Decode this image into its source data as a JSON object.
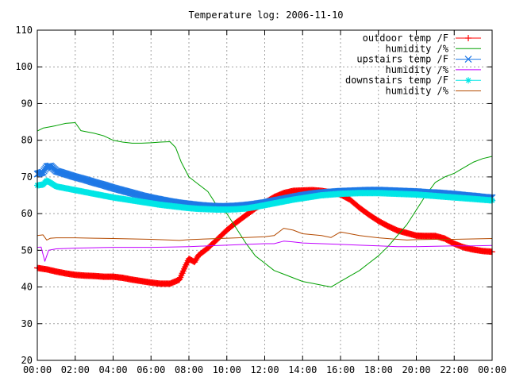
{
  "chart_data": {
    "type": "line",
    "title": "Temperature log: 2006-11-10",
    "xlabel": "",
    "ylabel": "",
    "ylim": [
      20,
      110
    ],
    "xlim": [
      0,
      24
    ],
    "grid": true,
    "legend_position": "top-right",
    "x_ticks": [
      "00:00",
      "02:00",
      "04:00",
      "06:00",
      "08:00",
      "10:00",
      "12:00",
      "14:00",
      "16:00",
      "18:00",
      "20:00",
      "22:00",
      "00:00"
    ],
    "y_ticks": [
      20,
      30,
      40,
      50,
      60,
      70,
      80,
      90,
      100,
      110
    ],
    "series": [
      {
        "name": "outdoor temp /F",
        "color": "#ff0000",
        "marker": "plus",
        "points": [
          [
            0,
            45.2
          ],
          [
            0.5,
            44.8
          ],
          [
            1,
            44.2
          ],
          [
            1.5,
            43.7
          ],
          [
            2,
            43.3
          ],
          [
            2.5,
            43.1
          ],
          [
            3,
            43.0
          ],
          [
            3.5,
            42.8
          ],
          [
            4,
            42.8
          ],
          [
            4.5,
            42.5
          ],
          [
            5,
            42.0
          ],
          [
            5.5,
            41.6
          ],
          [
            6,
            41.2
          ],
          [
            6.5,
            40.9
          ],
          [
            7,
            40.9
          ],
          [
            7.5,
            42.0
          ],
          [
            7.8,
            45.5
          ],
          [
            8,
            47.7
          ],
          [
            8.3,
            46.8
          ],
          [
            8.5,
            48.6
          ],
          [
            9,
            50.6
          ],
          [
            9.5,
            53.0
          ],
          [
            10,
            55.5
          ],
          [
            10.5,
            57.6
          ],
          [
            11,
            59.5
          ],
          [
            11.5,
            61.4
          ],
          [
            12,
            63.0
          ],
          [
            12.5,
            64.5
          ],
          [
            13,
            65.6
          ],
          [
            13.5,
            66.2
          ],
          [
            14,
            66.3
          ],
          [
            14.5,
            66.4
          ],
          [
            15,
            66.2
          ],
          [
            15.5,
            65.8
          ],
          [
            16,
            65.2
          ],
          [
            16.5,
            63.8
          ],
          [
            17,
            61.6
          ],
          [
            17.5,
            59.7
          ],
          [
            18,
            58.0
          ],
          [
            18.5,
            56.6
          ],
          [
            19,
            55.4
          ],
          [
            19.5,
            54.7
          ],
          [
            20,
            54.0
          ],
          [
            20.5,
            53.9
          ],
          [
            21,
            53.9
          ],
          [
            21.5,
            53.2
          ],
          [
            22,
            51.8
          ],
          [
            22.5,
            50.8
          ],
          [
            23,
            50.2
          ],
          [
            23.5,
            49.8
          ],
          [
            24,
            49.6
          ]
        ]
      },
      {
        "name": "humidity /%",
        "color": "#00a000",
        "marker": "none",
        "points": [
          [
            0,
            82.5
          ],
          [
            0.3,
            83.3
          ],
          [
            0.7,
            83.7
          ],
          [
            1,
            84.0
          ],
          [
            1.5,
            84.6
          ],
          [
            2,
            84.8
          ],
          [
            2.3,
            82.6
          ],
          [
            3,
            81.9
          ],
          [
            3.5,
            81.2
          ],
          [
            4,
            80.0
          ],
          [
            4.5,
            79.5
          ],
          [
            5,
            79.2
          ],
          [
            5.5,
            79.2
          ],
          [
            6,
            79.3
          ],
          [
            6.5,
            79.5
          ],
          [
            7,
            79.6
          ],
          [
            7.3,
            78.0
          ],
          [
            7.6,
            74.0
          ],
          [
            8,
            70.0
          ],
          [
            8.5,
            68.0
          ],
          [
            9,
            66.0
          ],
          [
            9.5,
            62.0
          ],
          [
            10,
            60.0
          ],
          [
            10.5,
            56.0
          ],
          [
            11,
            52.0
          ],
          [
            11.5,
            48.5
          ],
          [
            12,
            46.5
          ],
          [
            12.5,
            44.5
          ],
          [
            13,
            43.5
          ],
          [
            13.5,
            42.5
          ],
          [
            14,
            41.5
          ],
          [
            14.5,
            41.0
          ],
          [
            15,
            40.5
          ],
          [
            15.5,
            40.0
          ],
          [
            16,
            41.5
          ],
          [
            16.5,
            43.0
          ],
          [
            17,
            44.5
          ],
          [
            17.5,
            46.5
          ],
          [
            18,
            48.5
          ],
          [
            18.5,
            51.0
          ],
          [
            19,
            54.0
          ],
          [
            19.5,
            57.0
          ],
          [
            20,
            61.0
          ],
          [
            20.5,
            65.0
          ],
          [
            21,
            68.5
          ],
          [
            21.5,
            70.0
          ],
          [
            22,
            71.0
          ],
          [
            22.5,
            72.5
          ],
          [
            23,
            74.0
          ],
          [
            23.5,
            75.0
          ],
          [
            24,
            75.6
          ]
        ]
      },
      {
        "name": "upstairs temp /F",
        "color": "#1e78e6",
        "marker": "x",
        "points": [
          [
            0,
            70.8
          ],
          [
            0.3,
            71.3
          ],
          [
            0.5,
            72.8
          ],
          [
            0.7,
            73.0
          ],
          [
            1,
            71.6
          ],
          [
            1.5,
            70.8
          ],
          [
            2,
            70.0
          ],
          [
            2.5,
            69.3
          ],
          [
            3,
            68.5
          ],
          [
            3.5,
            67.8
          ],
          [
            4,
            67.0
          ],
          [
            4.5,
            66.3
          ],
          [
            5,
            65.6
          ],
          [
            5.5,
            64.9
          ],
          [
            6,
            64.3
          ],
          [
            6.5,
            63.8
          ],
          [
            7,
            63.3
          ],
          [
            7.5,
            62.9
          ],
          [
            8,
            62.6
          ],
          [
            8.5,
            62.3
          ],
          [
            9,
            62.1
          ],
          [
            9.5,
            62.0
          ],
          [
            10,
            62.0
          ],
          [
            10.5,
            62.1
          ],
          [
            11,
            62.3
          ],
          [
            11.5,
            62.6
          ],
          [
            12,
            63.0
          ],
          [
            12.5,
            63.5
          ],
          [
            13,
            64.0
          ],
          [
            13.5,
            64.5
          ],
          [
            14,
            65.0
          ],
          [
            14.5,
            65.4
          ],
          [
            15,
            65.7
          ],
          [
            15.5,
            65.9
          ],
          [
            16,
            66.1
          ],
          [
            16.5,
            66.2
          ],
          [
            17,
            66.3
          ],
          [
            17.5,
            66.4
          ],
          [
            18,
            66.4
          ],
          [
            18.5,
            66.3
          ],
          [
            19,
            66.2
          ],
          [
            19.5,
            66.1
          ],
          [
            20,
            66.0
          ],
          [
            20.5,
            65.8
          ],
          [
            21,
            65.7
          ],
          [
            21.5,
            65.5
          ],
          [
            22,
            65.3
          ],
          [
            22.5,
            65.0
          ],
          [
            23,
            64.8
          ],
          [
            23.5,
            64.5
          ],
          [
            24,
            64.3
          ]
        ]
      },
      {
        "name": "humidity /%",
        "color": "#c000ff",
        "marker": "none",
        "points": [
          [
            0,
            50.8
          ],
          [
            0.2,
            50.9
          ],
          [
            0.4,
            47.0
          ],
          [
            0.6,
            50.0
          ],
          [
            1,
            50.4
          ],
          [
            2,
            50.6
          ],
          [
            3,
            50.7
          ],
          [
            4,
            50.8
          ],
          [
            5,
            50.8
          ],
          [
            6,
            50.8
          ],
          [
            7,
            50.9
          ],
          [
            8,
            51.0
          ],
          [
            9,
            51.2
          ],
          [
            10,
            51.4
          ],
          [
            11,
            51.6
          ],
          [
            12,
            51.8
          ],
          [
            12.5,
            51.8
          ],
          [
            13,
            52.5
          ],
          [
            13.5,
            52.3
          ],
          [
            14,
            52.0
          ],
          [
            15,
            51.8
          ],
          [
            16,
            51.6
          ],
          [
            17,
            51.4
          ],
          [
            18,
            51.2
          ],
          [
            19,
            51.0
          ],
          [
            20,
            51.0
          ],
          [
            21,
            51.1
          ],
          [
            22,
            51.2
          ],
          [
            23,
            51.2
          ],
          [
            24,
            51.3
          ]
        ]
      },
      {
        "name": "downstairs temp /F",
        "color": "#00e6e6",
        "marker": "star",
        "points": [
          [
            0,
            67.7
          ],
          [
            0.3,
            67.9
          ],
          [
            0.5,
            69.0
          ],
          [
            0.7,
            68.4
          ],
          [
            1,
            67.4
          ],
          [
            1.5,
            66.9
          ],
          [
            2,
            66.4
          ],
          [
            2.5,
            65.9
          ],
          [
            3,
            65.4
          ],
          [
            3.5,
            64.9
          ],
          [
            4,
            64.4
          ],
          [
            4.5,
            64.0
          ],
          [
            5,
            63.6
          ],
          [
            5.5,
            63.2
          ],
          [
            6,
            62.8
          ],
          [
            6.5,
            62.4
          ],
          [
            7,
            62.1
          ],
          [
            7.5,
            61.8
          ],
          [
            8,
            61.5
          ],
          [
            8.5,
            61.3
          ],
          [
            9,
            61.2
          ],
          [
            9.5,
            61.1
          ],
          [
            10,
            61.1
          ],
          [
            10.5,
            61.2
          ],
          [
            11,
            61.4
          ],
          [
            11.5,
            61.8
          ],
          [
            12,
            62.3
          ],
          [
            12.5,
            62.8
          ],
          [
            13,
            63.3
          ],
          [
            13.5,
            63.8
          ],
          [
            14,
            64.2
          ],
          [
            14.5,
            64.6
          ],
          [
            15,
            65.0
          ],
          [
            15.5,
            65.2
          ],
          [
            16,
            65.4
          ],
          [
            16.5,
            65.5
          ],
          [
            17,
            65.6
          ],
          [
            17.5,
            65.6
          ],
          [
            18,
            65.6
          ],
          [
            18.5,
            65.5
          ],
          [
            19,
            65.4
          ],
          [
            19.5,
            65.3
          ],
          [
            20,
            65.2
          ],
          [
            20.5,
            65.0
          ],
          [
            21,
            64.8
          ],
          [
            21.5,
            64.6
          ],
          [
            22,
            64.4
          ],
          [
            22.5,
            64.2
          ],
          [
            23,
            64.0
          ],
          [
            23.5,
            63.8
          ],
          [
            24,
            63.6
          ]
        ]
      },
      {
        "name": "humidity /%",
        "color": "#b44a00",
        "marker": "none",
        "points": [
          [
            0,
            54.0
          ],
          [
            0.3,
            54.2
          ],
          [
            0.5,
            52.8
          ],
          [
            0.7,
            53.3
          ],
          [
            1,
            53.4
          ],
          [
            2,
            53.4
          ],
          [
            3,
            53.3
          ],
          [
            4,
            53.2
          ],
          [
            5,
            53.1
          ],
          [
            6,
            53.0
          ],
          [
            7,
            52.8
          ],
          [
            7.5,
            52.7
          ],
          [
            8,
            52.9
          ],
          [
            9,
            53.1
          ],
          [
            10,
            53.3
          ],
          [
            11,
            53.5
          ],
          [
            12,
            53.7
          ],
          [
            12.5,
            54.0
          ],
          [
            13,
            56.0
          ],
          [
            13.5,
            55.5
          ],
          [
            14,
            54.5
          ],
          [
            15,
            54.0
          ],
          [
            15.5,
            53.5
          ],
          [
            16,
            55.0
          ],
          [
            16.5,
            54.5
          ],
          [
            17,
            54.0
          ],
          [
            18,
            53.4
          ],
          [
            19,
            53.0
          ],
          [
            19.5,
            52.8
          ],
          [
            20,
            52.9
          ],
          [
            21,
            53.0
          ],
          [
            22,
            53.0
          ],
          [
            23,
            53.1
          ],
          [
            24,
            53.2
          ]
        ]
      }
    ]
  }
}
